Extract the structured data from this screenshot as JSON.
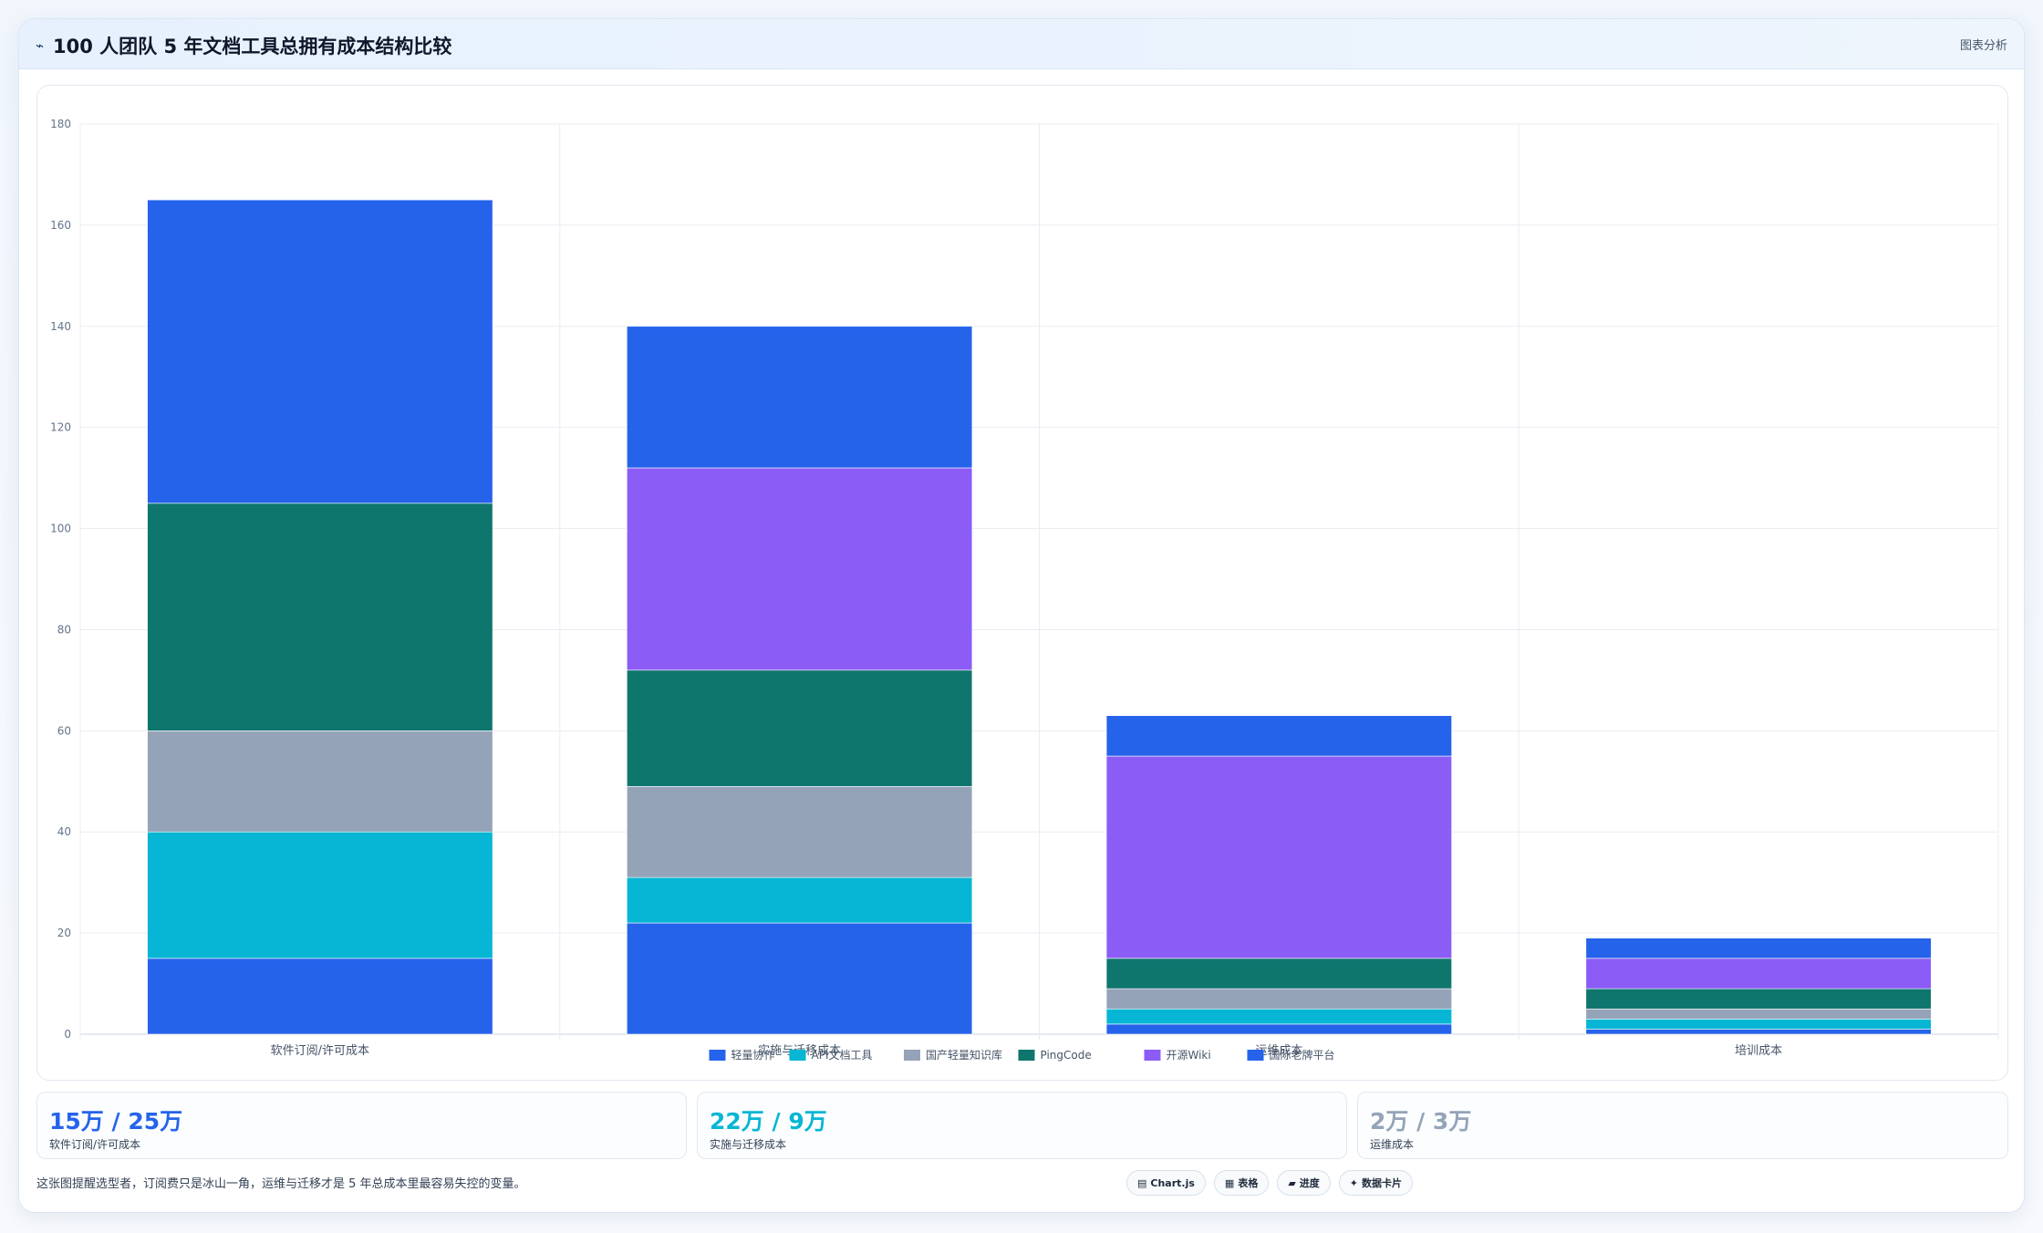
{
  "header": {
    "icon": "trend-line-icon",
    "title": "100 人团队 5 年文档工具总拥有成本结构比较",
    "tag": "图表分析"
  },
  "chart_data": {
    "type": "bar",
    "stacked": true,
    "categories": [
      "软件订阅/许可成本",
      "实施与迁移成本",
      "运维成本",
      "培训成本"
    ],
    "ylim": [
      0,
      180
    ],
    "yticks": [
      0,
      20,
      40,
      60,
      80,
      100,
      120,
      140,
      160,
      180
    ],
    "grid": true,
    "legend_position": "bottom",
    "series": [
      {
        "name": "轻量协作",
        "color": "#2563eb",
        "values": [
          15,
          22,
          2,
          1
        ]
      },
      {
        "name": "API文档工具",
        "color": "#06b6d4",
        "values": [
          25,
          9,
          3,
          2
        ]
      },
      {
        "name": "国产轻量知识库",
        "color": "#94a3b8",
        "values": [
          20,
          18,
          4,
          2
        ]
      },
      {
        "name": "PingCode",
        "color": "#0f766e",
        "values": [
          45,
          23,
          6,
          4
        ]
      },
      {
        "name": "开源Wiki",
        "color": "#8b5cf6",
        "values": [
          0,
          40,
          40,
          6
        ]
      },
      {
        "name": "国际老牌平台",
        "color": "#2563eb",
        "values": [
          60,
          28,
          8,
          4
        ]
      }
    ]
  },
  "stats": [
    {
      "value": "15万 / 25万",
      "label": "软件订阅/许可成本",
      "color": "#2563eb"
    },
    {
      "value": "22万 / 9万",
      "label": "实施与迁移成本",
      "color": "#06b6d4"
    },
    {
      "value": "2万 / 3万",
      "label": "运维成本",
      "color": "#94a3b8"
    }
  ],
  "footnote": "这张图提醒选型者，订阅费只是冰山一角，运维与迁移才是 5 年总成本里最容易失控的变量。",
  "pills": [
    {
      "icon": "chart-icon",
      "glyph": "▤",
      "label": "Chart.js"
    },
    {
      "icon": "table-icon",
      "glyph": "▦",
      "label": "表格"
    },
    {
      "icon": "progress-icon",
      "glyph": "▰",
      "label": "进度"
    },
    {
      "icon": "sparkle-icon",
      "glyph": "✦",
      "label": "数据卡片"
    }
  ]
}
